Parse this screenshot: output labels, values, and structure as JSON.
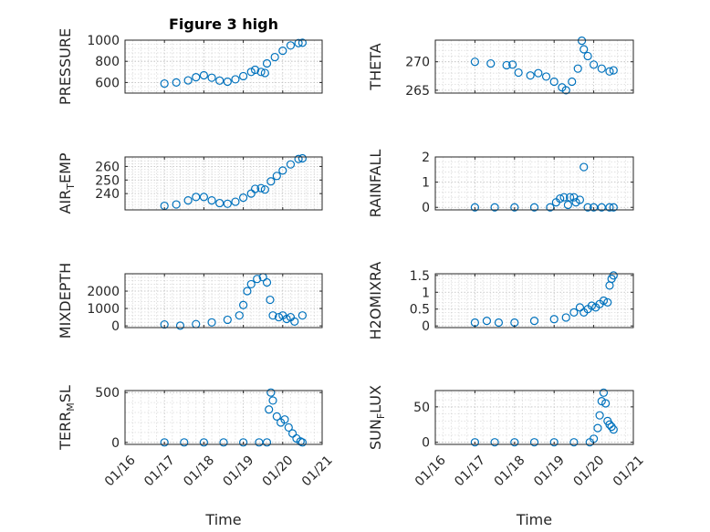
{
  "chart_data": [
    {
      "type": "scatter",
      "panel": "PRESSURE",
      "title": "Figure 3 high",
      "ylabel": "PRESSURE",
      "ylabel_sub": "",
      "xlabel": "",
      "ylim": [
        500,
        1000
      ],
      "yticks": [
        600,
        800,
        1000
      ],
      "xlim": [
        0,
        5
      ],
      "xticks": [
        0,
        1,
        2,
        3,
        4,
        5
      ],
      "xtick_labels": [],
      "points": [
        {
          "x": 1.0,
          "y": 590
        },
        {
          "x": 1.3,
          "y": 600
        },
        {
          "x": 1.6,
          "y": 620
        },
        {
          "x": 1.8,
          "y": 650
        },
        {
          "x": 2.0,
          "y": 668
        },
        {
          "x": 2.2,
          "y": 645
        },
        {
          "x": 2.4,
          "y": 618
        },
        {
          "x": 2.6,
          "y": 608
        },
        {
          "x": 2.8,
          "y": 630
        },
        {
          "x": 3.0,
          "y": 660
        },
        {
          "x": 3.2,
          "y": 700
        },
        {
          "x": 3.3,
          "y": 720
        },
        {
          "x": 3.45,
          "y": 700
        },
        {
          "x": 3.55,
          "y": 690
        },
        {
          "x": 3.6,
          "y": 780
        },
        {
          "x": 3.8,
          "y": 840
        },
        {
          "x": 4.0,
          "y": 900
        },
        {
          "x": 4.2,
          "y": 950
        },
        {
          "x": 4.4,
          "y": 972
        },
        {
          "x": 4.5,
          "y": 975
        }
      ]
    },
    {
      "type": "scatter",
      "panel": "THETA",
      "title": "",
      "ylabel": "THETA",
      "ylabel_sub": "",
      "xlabel": "",
      "ylim": [
        264.5,
        273.8
      ],
      "yticks": [
        265,
        270
      ],
      "xlim": [
        0,
        5
      ],
      "xticks": [
        0,
        1,
        2,
        3,
        4,
        5
      ],
      "xtick_labels": [],
      "points": [
        {
          "x": 1.0,
          "y": 270.0
        },
        {
          "x": 1.4,
          "y": 269.7
        },
        {
          "x": 1.8,
          "y": 269.4
        },
        {
          "x": 1.95,
          "y": 269.5
        },
        {
          "x": 2.1,
          "y": 268.1
        },
        {
          "x": 2.4,
          "y": 267.6
        },
        {
          "x": 2.6,
          "y": 268.0
        },
        {
          "x": 2.8,
          "y": 267.4
        },
        {
          "x": 3.0,
          "y": 266.5
        },
        {
          "x": 3.2,
          "y": 265.5
        },
        {
          "x": 3.3,
          "y": 265.0
        },
        {
          "x": 3.45,
          "y": 266.5
        },
        {
          "x": 3.6,
          "y": 268.8
        },
        {
          "x": 3.7,
          "y": 273.7
        },
        {
          "x": 3.75,
          "y": 272.2
        },
        {
          "x": 3.85,
          "y": 271.0
        },
        {
          "x": 4.0,
          "y": 269.5
        },
        {
          "x": 4.2,
          "y": 268.8
        },
        {
          "x": 4.4,
          "y": 268.3
        },
        {
          "x": 4.5,
          "y": 268.5
        }
      ]
    },
    {
      "type": "scatter",
      "panel": "AIR_TEMP",
      "title": "",
      "ylabel": "AIR",
      "ylabel_sub": "T",
      "ylabel_tail": "EMP",
      "xlabel": "",
      "ylim": [
        228,
        267
      ],
      "yticks": [
        240,
        250,
        260
      ],
      "xlim": [
        0,
        5
      ],
      "xticks": [
        0,
        1,
        2,
        3,
        4,
        5
      ],
      "xtick_labels": [],
      "points": [
        {
          "x": 1.0,
          "y": 231
        },
        {
          "x": 1.3,
          "y": 232
        },
        {
          "x": 1.6,
          "y": 235
        },
        {
          "x": 1.8,
          "y": 237.5
        },
        {
          "x": 2.0,
          "y": 237.5
        },
        {
          "x": 2.2,
          "y": 235
        },
        {
          "x": 2.4,
          "y": 233
        },
        {
          "x": 2.6,
          "y": 232.5
        },
        {
          "x": 2.8,
          "y": 234
        },
        {
          "x": 3.0,
          "y": 237
        },
        {
          "x": 3.2,
          "y": 240
        },
        {
          "x": 3.3,
          "y": 243.5
        },
        {
          "x": 3.45,
          "y": 244
        },
        {
          "x": 3.55,
          "y": 243
        },
        {
          "x": 3.7,
          "y": 249
        },
        {
          "x": 3.85,
          "y": 253
        },
        {
          "x": 4.0,
          "y": 257
        },
        {
          "x": 4.2,
          "y": 261.5
        },
        {
          "x": 4.4,
          "y": 265.5
        },
        {
          "x": 4.5,
          "y": 266
        }
      ]
    },
    {
      "type": "scatter",
      "panel": "RAINFALL",
      "title": "",
      "ylabel": "RAINFALL",
      "ylabel_sub": "",
      "xlabel": "",
      "ylim": [
        -0.1,
        2.0
      ],
      "yticks": [
        0,
        1,
        2
      ],
      "xlim": [
        0,
        5
      ],
      "xticks": [
        0,
        1,
        2,
        3,
        4,
        5
      ],
      "xtick_labels": [],
      "points": [
        {
          "x": 1.0,
          "y": 0
        },
        {
          "x": 1.5,
          "y": 0
        },
        {
          "x": 2.0,
          "y": 0
        },
        {
          "x": 2.5,
          "y": 0
        },
        {
          "x": 2.9,
          "y": 0
        },
        {
          "x": 3.05,
          "y": 0.2
        },
        {
          "x": 3.15,
          "y": 0.35
        },
        {
          "x": 3.25,
          "y": 0.4
        },
        {
          "x": 3.35,
          "y": 0.1
        },
        {
          "x": 3.4,
          "y": 0.4
        },
        {
          "x": 3.5,
          "y": 0.4
        },
        {
          "x": 3.55,
          "y": 0.2
        },
        {
          "x": 3.65,
          "y": 0.3
        },
        {
          "x": 3.75,
          "y": 1.6
        },
        {
          "x": 3.85,
          "y": 0
        },
        {
          "x": 4.0,
          "y": 0
        },
        {
          "x": 4.2,
          "y": 0
        },
        {
          "x": 4.4,
          "y": 0
        },
        {
          "x": 4.5,
          "y": 0
        }
      ]
    },
    {
      "type": "scatter",
      "panel": "MIXDEPTH",
      "title": "",
      "ylabel": "MIXDEPTH",
      "ylabel_sub": "",
      "xlabel": "",
      "ylim": [
        -100,
        3000
      ],
      "yticks": [
        0,
        1000,
        2000
      ],
      "xlim": [
        0,
        5
      ],
      "xticks": [
        0,
        1,
        2,
        3,
        4,
        5
      ],
      "xtick_labels": [],
      "points": [
        {
          "x": 1.0,
          "y": 80
        },
        {
          "x": 1.4,
          "y": 10
        },
        {
          "x": 1.8,
          "y": 100
        },
        {
          "x": 2.2,
          "y": 200
        },
        {
          "x": 2.6,
          "y": 350
        },
        {
          "x": 2.9,
          "y": 600
        },
        {
          "x": 3.0,
          "y": 1200
        },
        {
          "x": 3.1,
          "y": 2000
        },
        {
          "x": 3.2,
          "y": 2400
        },
        {
          "x": 3.35,
          "y": 2700
        },
        {
          "x": 3.5,
          "y": 2800
        },
        {
          "x": 3.6,
          "y": 2500
        },
        {
          "x": 3.68,
          "y": 1500
        },
        {
          "x": 3.75,
          "y": 600
        },
        {
          "x": 3.9,
          "y": 500
        },
        {
          "x": 4.0,
          "y": 600
        },
        {
          "x": 4.1,
          "y": 400
        },
        {
          "x": 4.2,
          "y": 500
        },
        {
          "x": 4.3,
          "y": 250
        },
        {
          "x": 4.5,
          "y": 600
        }
      ]
    },
    {
      "type": "scatter",
      "panel": "H2OMIXRA",
      "title": "",
      "ylabel": "H2OMIXRA",
      "ylabel_sub": "",
      "xlabel": "",
      "ylim": [
        -0.05,
        1.55
      ],
      "yticks": [
        0,
        0.5,
        1,
        1.5
      ],
      "xlim": [
        0,
        5
      ],
      "xticks": [
        0,
        1,
        2,
        3,
        4,
        5
      ],
      "xtick_labels": [],
      "points": [
        {
          "x": 1.0,
          "y": 0.1
        },
        {
          "x": 1.3,
          "y": 0.15
        },
        {
          "x": 1.6,
          "y": 0.1
        },
        {
          "x": 2.0,
          "y": 0.1
        },
        {
          "x": 2.5,
          "y": 0.15
        },
        {
          "x": 3.0,
          "y": 0.2
        },
        {
          "x": 3.3,
          "y": 0.25
        },
        {
          "x": 3.5,
          "y": 0.4
        },
        {
          "x": 3.65,
          "y": 0.55
        },
        {
          "x": 3.75,
          "y": 0.4
        },
        {
          "x": 3.85,
          "y": 0.5
        },
        {
          "x": 3.95,
          "y": 0.6
        },
        {
          "x": 4.05,
          "y": 0.55
        },
        {
          "x": 4.15,
          "y": 0.65
        },
        {
          "x": 4.25,
          "y": 0.75
        },
        {
          "x": 4.35,
          "y": 0.7
        },
        {
          "x": 4.4,
          "y": 1.2
        },
        {
          "x": 4.45,
          "y": 1.4
        },
        {
          "x": 4.5,
          "y": 1.5
        }
      ]
    },
    {
      "type": "scatter",
      "panel": "TERR_MSL",
      "title": "",
      "ylabel": "TERR",
      "ylabel_sub": "M",
      "ylabel_tail": "SL",
      "xlabel": "Time",
      "ylim": [
        -20,
        520
      ],
      "yticks": [
        0,
        500
      ],
      "xlim": [
        0,
        5
      ],
      "xticks": [
        0,
        1,
        2,
        3,
        4,
        5
      ],
      "xtick_labels": [
        "01/16",
        "01/17",
        "01/18",
        "01/19",
        "01/20",
        "01/21"
      ],
      "points": [
        {
          "x": 1.0,
          "y": 0
        },
        {
          "x": 1.5,
          "y": 0
        },
        {
          "x": 2.0,
          "y": 0
        },
        {
          "x": 2.5,
          "y": 0
        },
        {
          "x": 3.0,
          "y": 0
        },
        {
          "x": 3.4,
          "y": 0
        },
        {
          "x": 3.6,
          "y": 0
        },
        {
          "x": 3.65,
          "y": 330
        },
        {
          "x": 3.7,
          "y": 500
        },
        {
          "x": 3.75,
          "y": 420
        },
        {
          "x": 3.85,
          "y": 260
        },
        {
          "x": 3.95,
          "y": 200
        },
        {
          "x": 4.05,
          "y": 230
        },
        {
          "x": 4.15,
          "y": 150
        },
        {
          "x": 4.25,
          "y": 90
        },
        {
          "x": 4.35,
          "y": 40
        },
        {
          "x": 4.45,
          "y": 10
        },
        {
          "x": 4.5,
          "y": 0
        }
      ]
    },
    {
      "type": "scatter",
      "panel": "SUN_FLUX",
      "title": "",
      "ylabel": "SUN",
      "ylabel_sub": "F",
      "ylabel_tail": "LUX",
      "xlabel": "Time",
      "ylim": [
        -3,
        73
      ],
      "yticks": [
        0,
        50
      ],
      "xlim": [
        0,
        5
      ],
      "xticks": [
        0,
        1,
        2,
        3,
        4,
        5
      ],
      "xtick_labels": [
        "01/16",
        "01/17",
        "01/18",
        "01/19",
        "01/20",
        "01/21"
      ],
      "points": [
        {
          "x": 1.0,
          "y": 0
        },
        {
          "x": 1.5,
          "y": 0
        },
        {
          "x": 2.0,
          "y": 0
        },
        {
          "x": 2.5,
          "y": 0
        },
        {
          "x": 3.0,
          "y": 0
        },
        {
          "x": 3.5,
          "y": 0
        },
        {
          "x": 3.9,
          "y": 0
        },
        {
          "x": 4.0,
          "y": 5
        },
        {
          "x": 4.1,
          "y": 20
        },
        {
          "x": 4.15,
          "y": 38
        },
        {
          "x": 4.2,
          "y": 58
        },
        {
          "x": 4.25,
          "y": 70
        },
        {
          "x": 4.3,
          "y": 55
        },
        {
          "x": 4.35,
          "y": 30
        },
        {
          "x": 4.4,
          "y": 25
        },
        {
          "x": 4.45,
          "y": 22
        },
        {
          "x": 4.5,
          "y": 18
        }
      ]
    }
  ]
}
